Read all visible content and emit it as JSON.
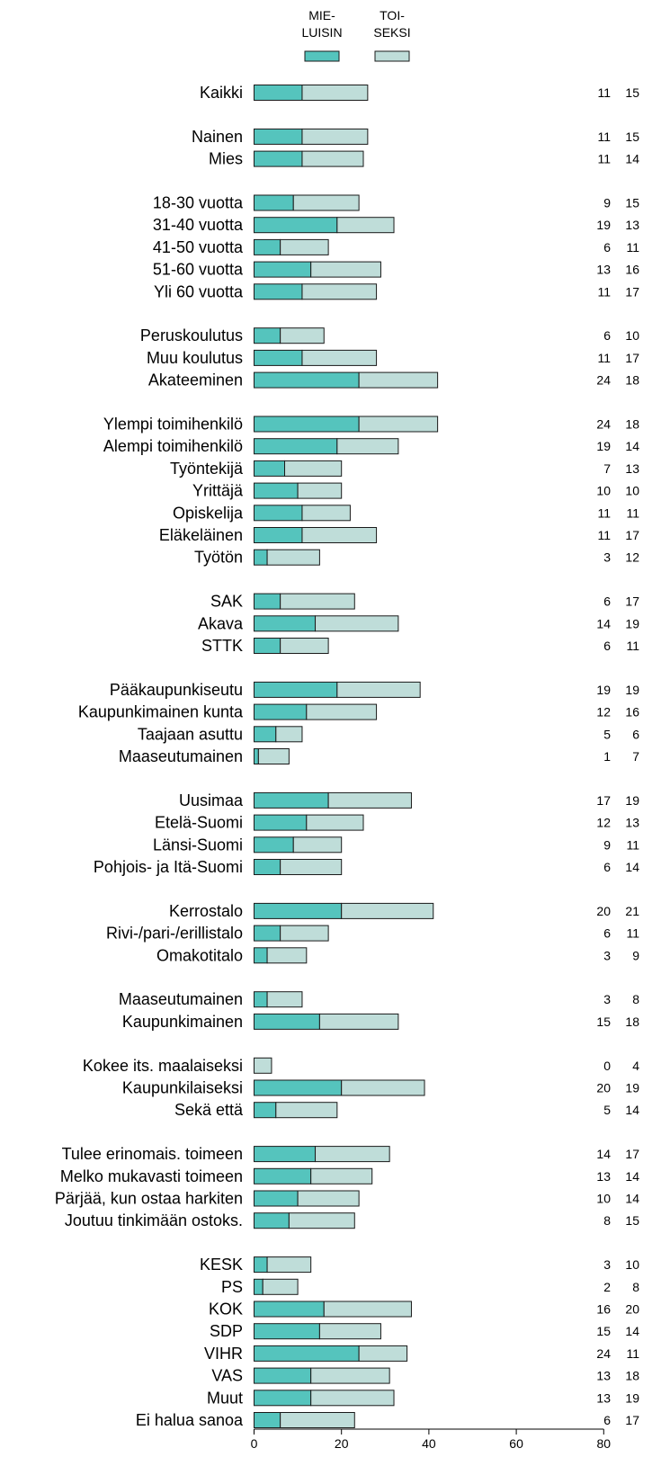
{
  "chart_data": {
    "type": "bar",
    "stacked": true,
    "orientation": "horizontal",
    "legend_position": "top",
    "xlim": [
      0,
      80
    ],
    "x_ticks": [
      "0",
      "20",
      "40",
      "60",
      "80"
    ],
    "grid": false,
    "colors": {
      "mieluisin": "#55c4bd",
      "toiseksi": "#bfddd9",
      "outline": "#1a1a1a"
    },
    "series": [
      {
        "name": "MIE-\nLUISIN",
        "legend_lines": [
          "MIE-",
          "LUISIN"
        ]
      },
      {
        "name": "TOI-\nSEKSI",
        "legend_lines": [
          "TOI-",
          "SEKSI"
        ]
      }
    ],
    "groups": [
      {
        "rows": [
          {
            "label": "Kaikki",
            "a": 11,
            "b": 15
          }
        ]
      },
      {
        "rows": [
          {
            "label": "Nainen",
            "a": 11,
            "b": 15
          },
          {
            "label": "Mies",
            "a": 11,
            "b": 14
          }
        ]
      },
      {
        "rows": [
          {
            "label": "18-30 vuotta",
            "a": 9,
            "b": 15
          },
          {
            "label": "31-40 vuotta",
            "a": 19,
            "b": 13
          },
          {
            "label": "41-50 vuotta",
            "a": 6,
            "b": 11
          },
          {
            "label": "51-60 vuotta",
            "a": 13,
            "b": 16
          },
          {
            "label": "Yli 60 vuotta",
            "a": 11,
            "b": 17
          }
        ]
      },
      {
        "rows": [
          {
            "label": "Peruskoulutus",
            "a": 6,
            "b": 10
          },
          {
            "label": "Muu koulutus",
            "a": 11,
            "b": 17
          },
          {
            "label": "Akateeminen",
            "a": 24,
            "b": 18
          }
        ]
      },
      {
        "rows": [
          {
            "label": "Ylempi toimihenkilö",
            "a": 24,
            "b": 18
          },
          {
            "label": "Alempi toimihenkilö",
            "a": 19,
            "b": 14
          },
          {
            "label": "Työntekijä",
            "a": 7,
            "b": 13
          },
          {
            "label": "Yrittäjä",
            "a": 10,
            "b": 10
          },
          {
            "label": "Opiskelija",
            "a": 11,
            "b": 11
          },
          {
            "label": "Eläkeläinen",
            "a": 11,
            "b": 17
          },
          {
            "label": "Työtön",
            "a": 3,
            "b": 12
          }
        ]
      },
      {
        "rows": [
          {
            "label": "SAK",
            "a": 6,
            "b": 17
          },
          {
            "label": "Akava",
            "a": 14,
            "b": 19
          },
          {
            "label": "STTK",
            "a": 6,
            "b": 11
          }
        ]
      },
      {
        "rows": [
          {
            "label": "Pääkaupunkiseutu",
            "a": 19,
            "b": 19
          },
          {
            "label": "Kaupunkimainen kunta",
            "a": 12,
            "b": 16
          },
          {
            "label": "Taajaan asuttu",
            "a": 5,
            "b": 6
          },
          {
            "label": "Maaseutumainen",
            "a": 1,
            "b": 7
          }
        ]
      },
      {
        "rows": [
          {
            "label": "Uusimaa",
            "a": 17,
            "b": 19
          },
          {
            "label": "Etelä-Suomi",
            "a": 12,
            "b": 13
          },
          {
            "label": "Länsi-Suomi",
            "a": 9,
            "b": 11
          },
          {
            "label": "Pohjois- ja Itä-Suomi",
            "a": 6,
            "b": 14
          }
        ]
      },
      {
        "rows": [
          {
            "label": "Kerrostalo",
            "a": 20,
            "b": 21
          },
          {
            "label": "Rivi-/pari-/erillistalo",
            "a": 6,
            "b": 11
          },
          {
            "label": "Omakotitalo",
            "a": 3,
            "b": 9
          }
        ]
      },
      {
        "rows": [
          {
            "label": "Maaseutumainen",
            "a": 3,
            "b": 8
          },
          {
            "label": "Kaupunkimainen",
            "a": 15,
            "b": 18
          }
        ]
      },
      {
        "rows": [
          {
            "label": "Kokee its. maalaiseksi",
            "a": 0,
            "b": 4
          },
          {
            "label": "Kaupunkilaiseksi",
            "a": 20,
            "b": 19
          },
          {
            "label": "Sekä että",
            "a": 5,
            "b": 14
          }
        ]
      },
      {
        "rows": [
          {
            "label": "Tulee erinomais. toimeen",
            "a": 14,
            "b": 17
          },
          {
            "label": "Melko mukavasti toimeen",
            "a": 13,
            "b": 14
          },
          {
            "label": "Pärjää, kun ostaa harkiten",
            "a": 10,
            "b": 14
          },
          {
            "label": "Joutuu tinkimään ostoks.",
            "a": 8,
            "b": 15
          }
        ]
      },
      {
        "rows": [
          {
            "label": "KESK",
            "a": 3,
            "b": 10
          },
          {
            "label": "PS",
            "a": 2,
            "b": 8
          },
          {
            "label": "KOK",
            "a": 16,
            "b": 20
          },
          {
            "label": "SDP",
            "a": 15,
            "b": 14
          },
          {
            "label": "VIHR",
            "a": 24,
            "b": 11
          },
          {
            "label": "VAS",
            "a": 13,
            "b": 18
          },
          {
            "label": "Muut",
            "a": 13,
            "b": 19
          },
          {
            "label": "Ei halua sanoa",
            "a": 6,
            "b": 17
          }
        ]
      }
    ]
  }
}
